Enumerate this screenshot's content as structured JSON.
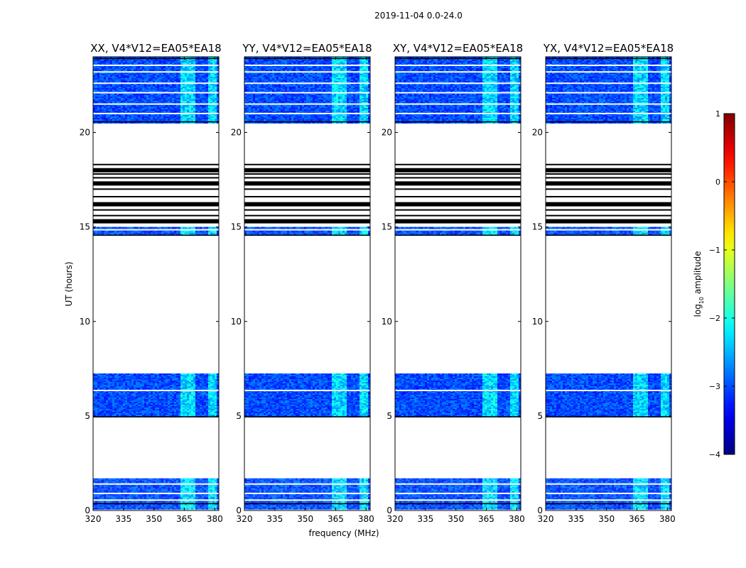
{
  "chart_data": {
    "type": "heatmap",
    "suptitle": "2019-11-04 0.0-24.0",
    "xlabel": "frequency (MHz)",
    "ylabel": "UT (hours)",
    "xlim": [
      320,
      382
    ],
    "ylim": [
      0,
      24
    ],
    "xticks": [
      "320",
      "335",
      "350",
      "365",
      "380"
    ],
    "yticks": [
      "0",
      "5",
      "10",
      "15",
      "20"
    ],
    "panels": [
      {
        "title": "XX, V4*V12=EA05*EA18"
      },
      {
        "title": "YY, V4*V12=EA05*EA18"
      },
      {
        "title": "XY, V4*V12=EA05*EA18"
      },
      {
        "title": "YX, V4*V12=EA05*EA18"
      }
    ],
    "colorbar": {
      "label": "log10 amplitude",
      "label_main": "log",
      "label_sub": "10",
      "label_rest": " amplitude",
      "range": [
        -4,
        1
      ],
      "ticks": [
        "1",
        "0",
        "−1",
        "−2",
        "−3",
        "−4"
      ],
      "colormap": "jet"
    },
    "data_blocks_ut": [
      {
        "start": 0.1,
        "end": 1.7,
        "level": -3.0
      },
      {
        "start": 4.95,
        "end": 7.25,
        "level": -3.0
      },
      {
        "start": 14.6,
        "end": 15.0,
        "level": -3.0
      },
      {
        "start": 20.5,
        "end": 24.0,
        "level": -3.0
      }
    ],
    "flagged_lines_ut": [
      15.3,
      15.6,
      15.9,
      16.2,
      16.6,
      17.0,
      17.3,
      17.6,
      17.8,
      18.0,
      18.3
    ],
    "rfi_band_mhz": [
      363,
      380
    ],
    "rfi_level": -2.0
  }
}
